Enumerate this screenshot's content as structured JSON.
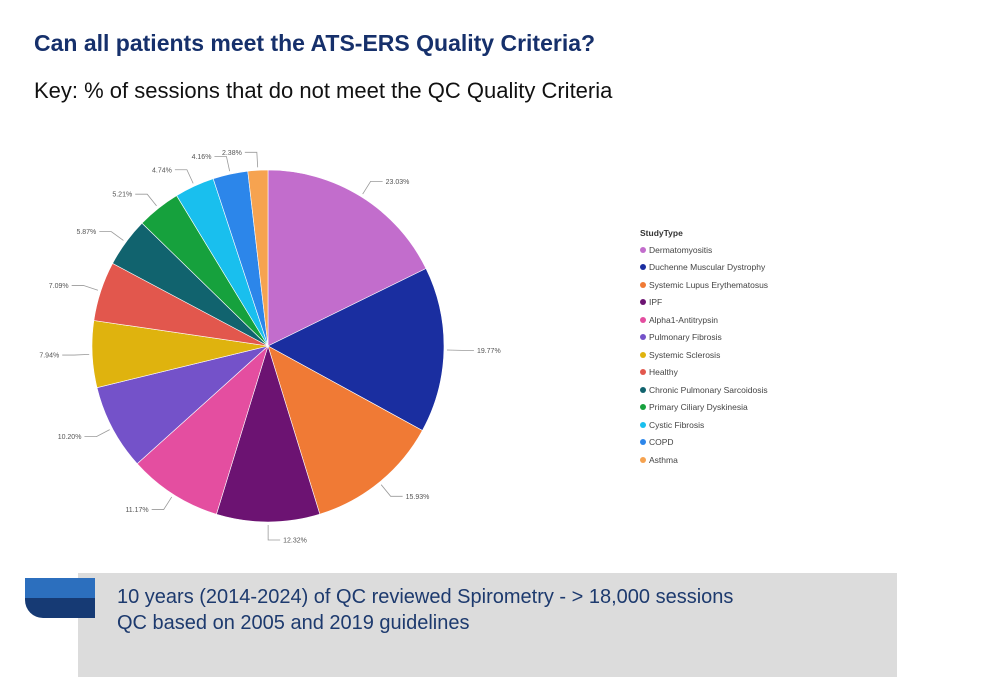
{
  "title": "Can all patients meet the ATS-ERS Quality Criteria?",
  "subtitle": "Key: % of sessions that do not meet the QC Quality Criteria",
  "footer": {
    "line1": "10 years (2014-2024) of QC reviewed Spirometry - > 18,000 sessions",
    "line2": "QC based on 2005 and 2019 guidelines"
  },
  "chart_data": {
    "type": "pie",
    "legend_title": "StudyType",
    "legend_position": "right",
    "slices": [
      {
        "name": "Dermatomyositis",
        "value": 23.03,
        "label": "23.03%",
        "color": "#c26dcc"
      },
      {
        "name": "Duchenne Muscular Dystrophy",
        "value": 19.77,
        "label": "19.77%",
        "color": "#1a2ea0"
      },
      {
        "name": "Systemic Lupus Erythematosus",
        "value": 15.93,
        "label": "15.93%",
        "color": "#f07a35"
      },
      {
        "name": "IPF",
        "value": 12.32,
        "label": "12.32%",
        "color": "#6c1372"
      },
      {
        "name": "Alpha1-Antitrypsin",
        "value": 11.17,
        "label": "11.17%",
        "color": "#e44ea0"
      },
      {
        "name": "Pulmonary Fibrosis",
        "value": 10.2,
        "label": "10.20%",
        "color": "#7452c9"
      },
      {
        "name": "Systemic Sclerosis",
        "value": 7.94,
        "label": "7.94%",
        "color": "#dfb30e"
      },
      {
        "name": "Healthy",
        "value": 7.09,
        "label": "7.09%",
        "color": "#e2574d"
      },
      {
        "name": "Chronic Pulmonary Sarcoidosis",
        "value": 5.87,
        "label": "5.87%",
        "color": "#11636e"
      },
      {
        "name": "Primary Ciliary Dyskinesia",
        "value": 5.21,
        "label": "5.21%",
        "color": "#16a13d"
      },
      {
        "name": "Cystic Fibrosis",
        "value": 4.74,
        "label": "4.74%",
        "color": "#19bfee"
      },
      {
        "name": "COPD",
        "value": 4.16,
        "label": "4.16%",
        "color": "#2c86ea"
      },
      {
        "name": "Asthma",
        "value": 2.38,
        "label": "2.38%",
        "color": "#f6a350"
      }
    ]
  }
}
